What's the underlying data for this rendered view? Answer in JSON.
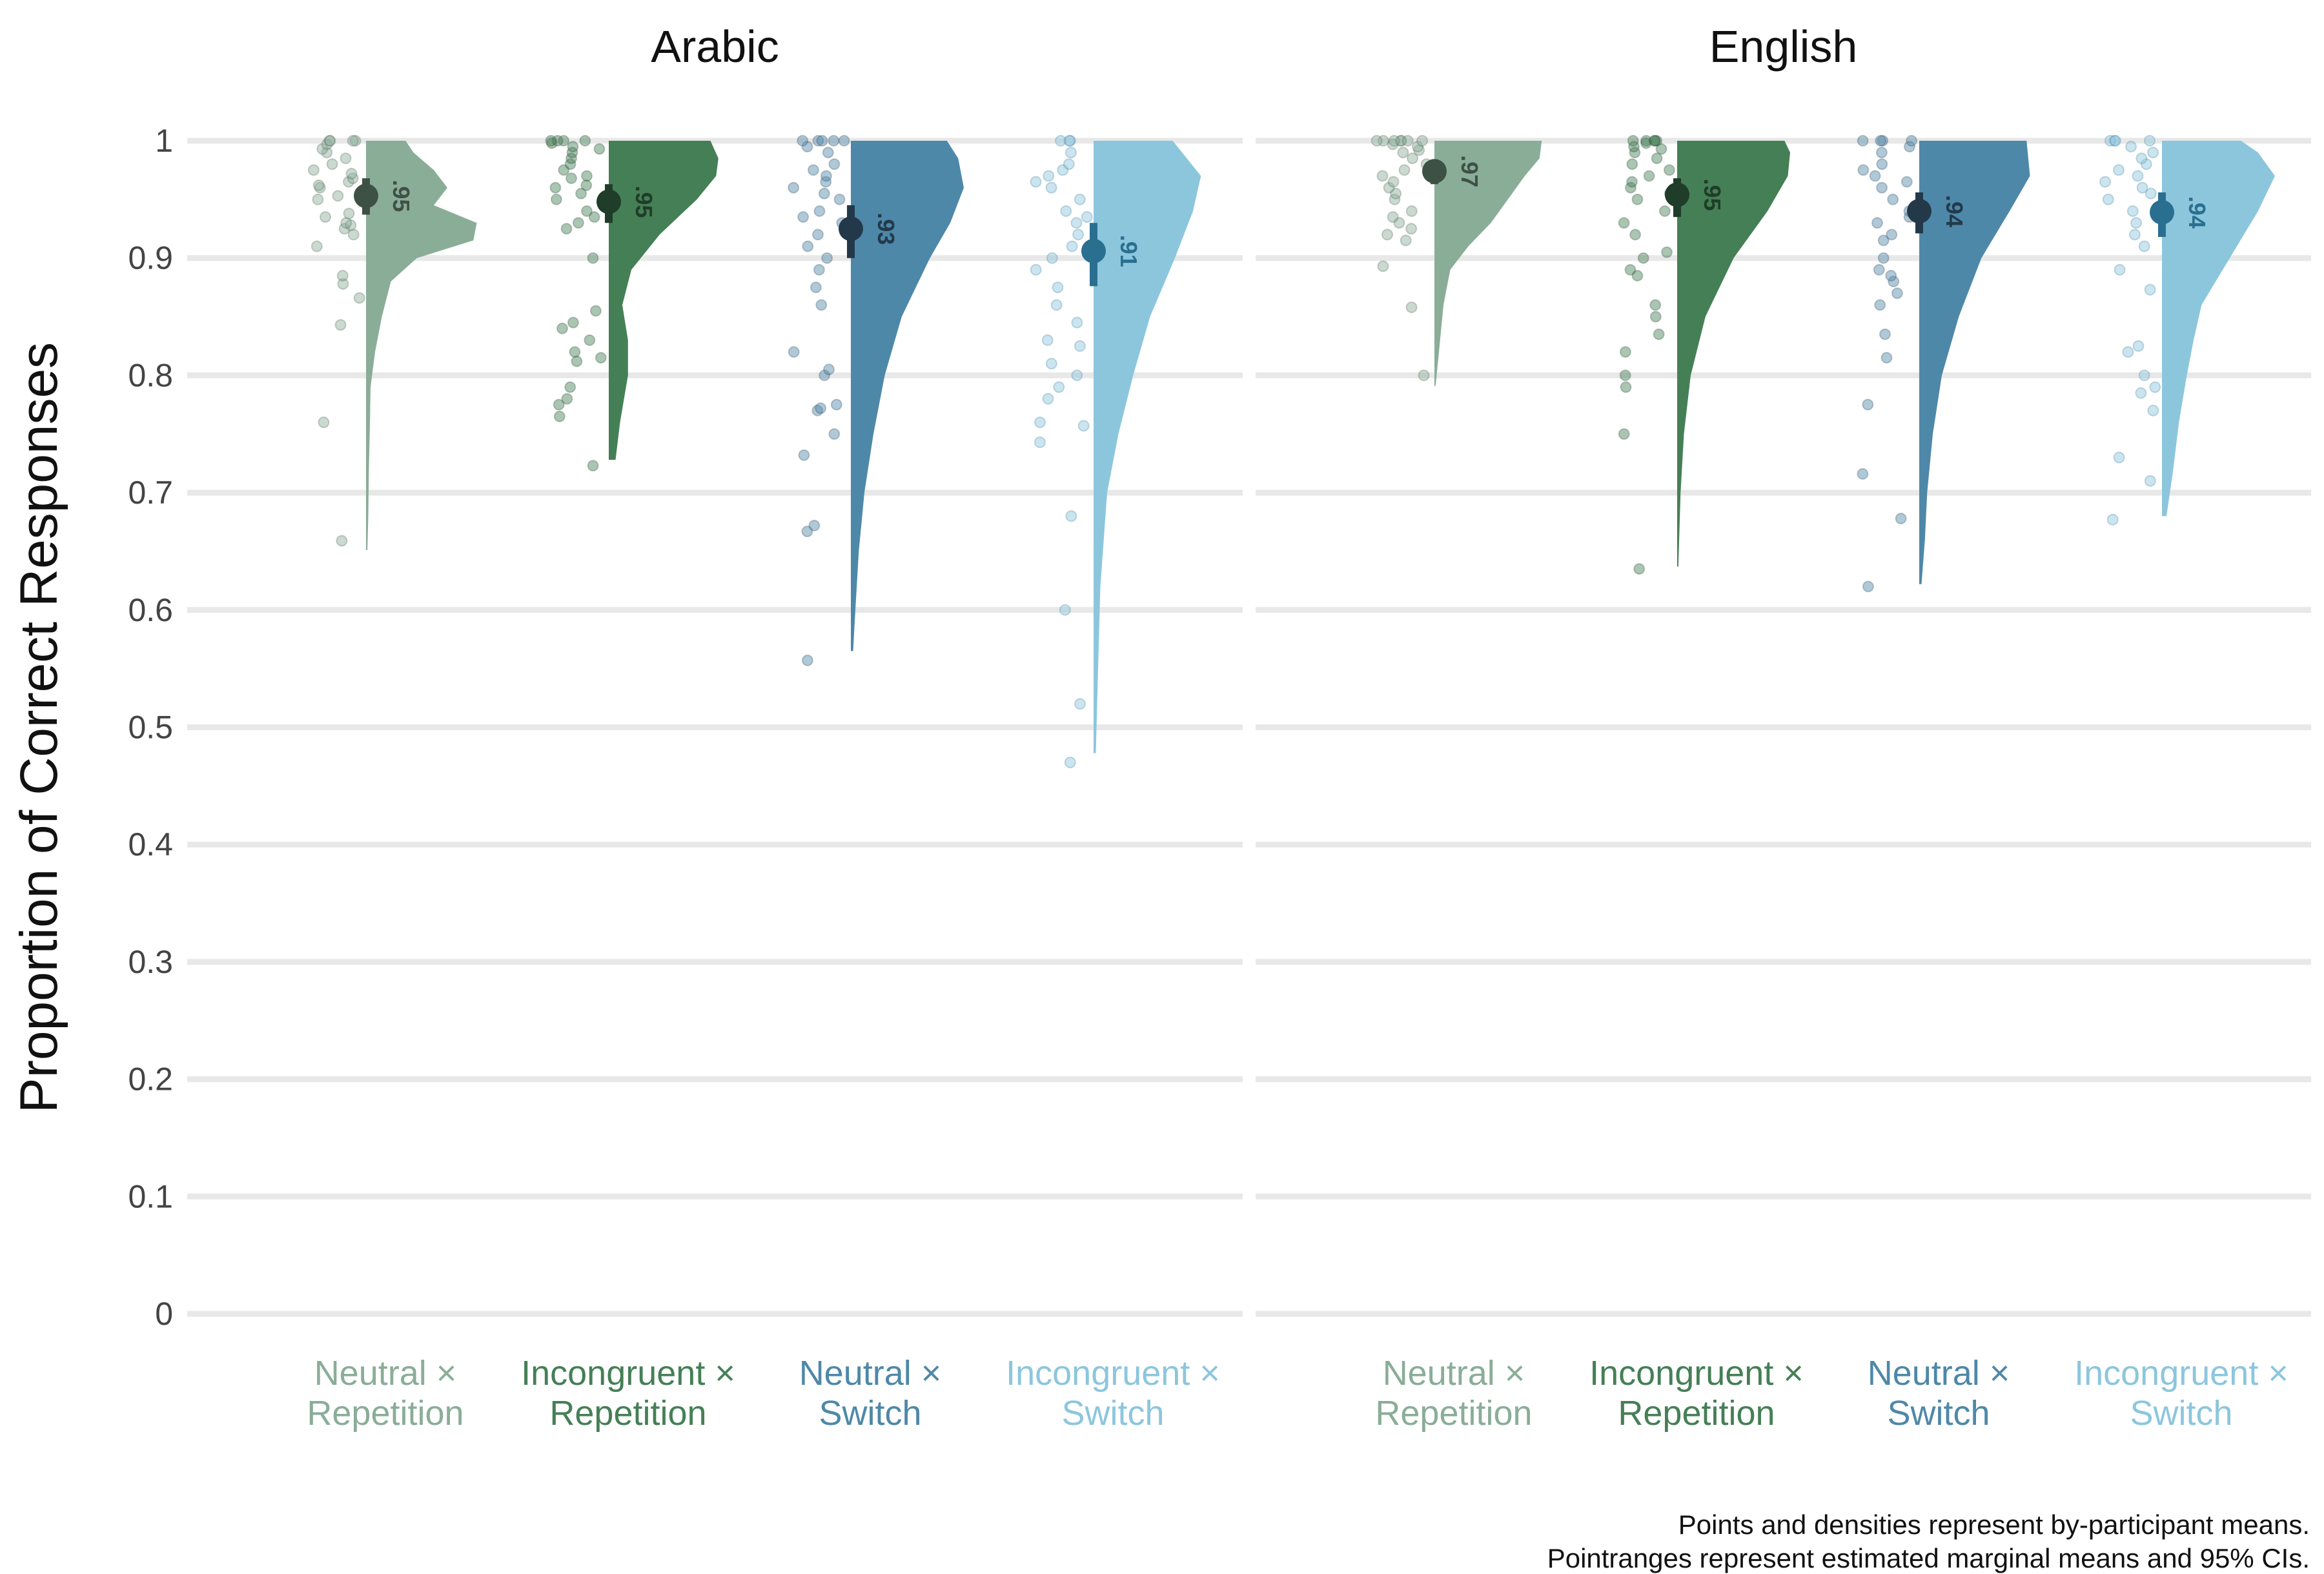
{
  "chart_data": {
    "type": "raincloud",
    "ylabel": "Proportion of Correct Responses",
    "ylim": [
      0,
      1
    ],
    "yticks": [
      0,
      0.1,
      0.2,
      0.3,
      0.4,
      0.5,
      0.6,
      0.7,
      0.8,
      0.9,
      1
    ],
    "ytick_labels": [
      "0",
      "0.1",
      "0.2",
      "0.3",
      "0.4",
      "0.5",
      "0.6",
      "0.7",
      "0.8",
      "0.9",
      "1"
    ],
    "grid": true,
    "legend": "none",
    "categories": [
      "Neutral × Repetition",
      "Incongruent × Repetition",
      "Neutral × Switch",
      "Incongruent × Switch"
    ],
    "category_lines": [
      [
        "Neutral ×",
        "Repetition"
      ],
      [
        "Incongruent ×",
        "Repetition"
      ],
      [
        "Neutral ×",
        "Switch"
      ],
      [
        "Incongruent ×",
        "Switch"
      ]
    ],
    "colors": [
      "#8aad98",
      "#457f56",
      "#4e88a8",
      "#8cc6dd"
    ],
    "dark_colors": [
      "#3e5145",
      "#1f3d29",
      "#23394a",
      "#2a6f90"
    ],
    "panels": [
      {
        "title": "Arabic",
        "groups": [
          {
            "mean": 0.953,
            "ci": [
              0.937,
              0.968
            ],
            "label": ".95",
            "min": 0.651,
            "density": [
              [
                0.651,
                0.012
              ],
              [
                0.68,
                0.02
              ],
              [
                0.72,
                0.025
              ],
              [
                0.76,
                0.035
              ],
              [
                0.79,
                0.04
              ],
              [
                0.82,
                0.08
              ],
              [
                0.85,
                0.14
              ],
              [
                0.88,
                0.22
              ],
              [
                0.9,
                0.45
              ],
              [
                0.915,
                0.95
              ],
              [
                0.93,
                0.98
              ],
              [
                0.945,
                0.6
              ],
              [
                0.96,
                0.72
              ],
              [
                0.975,
                0.6
              ],
              [
                0.99,
                0.42
              ],
              [
                1.0,
                0.35
              ]
            ],
            "points": [
              0.659,
              0.76,
              0.843,
              0.866,
              0.878,
              0.885,
              0.91,
              0.92,
              0.925,
              0.928,
              0.93,
              0.935,
              0.938,
              0.95,
              0.953,
              0.96,
              0.962,
              0.965,
              0.968,
              0.972,
              0.975,
              0.98,
              0.985,
              0.99,
              0.993,
              0.997,
              1.0,
              1.0,
              1.0,
              1.0
            ]
          },
          {
            "mean": 0.948,
            "ci": [
              0.93,
              0.963
            ],
            "label": ".95",
            "min": 0.728,
            "density": [
              [
                0.728,
                0.06
              ],
              [
                0.76,
                0.1
              ],
              [
                0.8,
                0.17
              ],
              [
                0.83,
                0.17
              ],
              [
                0.86,
                0.12
              ],
              [
                0.89,
                0.2
              ],
              [
                0.92,
                0.45
              ],
              [
                0.95,
                0.78
              ],
              [
                0.97,
                0.95
              ],
              [
                0.985,
                0.97
              ],
              [
                1.0,
                0.9
              ]
            ],
            "points": [
              0.723,
              0.765,
              0.775,
              0.78,
              0.79,
              0.812,
              0.815,
              0.82,
              0.83,
              0.84,
              0.845,
              0.855,
              0.9,
              0.925,
              0.93,
              0.935,
              0.94,
              0.95,
              0.955,
              0.96,
              0.962,
              0.968,
              0.97,
              0.975,
              0.98,
              0.985,
              0.99,
              0.993,
              0.995,
              0.998,
              1.0,
              1.0,
              1.0,
              1.0
            ]
          },
          {
            "mean": 0.925,
            "ci": [
              0.9,
              0.945
            ],
            "label": ".93",
            "min": 0.565,
            "density": [
              [
                0.565,
                0.02
              ],
              [
                0.6,
                0.04
              ],
              [
                0.65,
                0.07
              ],
              [
                0.7,
                0.12
              ],
              [
                0.75,
                0.2
              ],
              [
                0.8,
                0.3
              ],
              [
                0.85,
                0.45
              ],
              [
                0.9,
                0.7
              ],
              [
                0.93,
                0.88
              ],
              [
                0.96,
                1.0
              ],
              [
                0.985,
                0.95
              ],
              [
                1.0,
                0.85
              ]
            ],
            "points": [
              0.557,
              0.667,
              0.672,
              0.732,
              0.75,
              0.77,
              0.772,
              0.775,
              0.8,
              0.805,
              0.82,
              0.86,
              0.875,
              0.89,
              0.9,
              0.91,
              0.92,
              0.93,
              0.935,
              0.94,
              0.95,
              0.955,
              0.96,
              0.965,
              0.97,
              0.975,
              0.98,
              0.99,
              0.995,
              1.0,
              1.0,
              1.0,
              1.0,
              1.0
            ]
          },
          {
            "mean": 0.906,
            "ci": [
              0.876,
              0.93
            ],
            "label": ".91",
            "min": 0.478,
            "density": [
              [
                0.478,
                0.02
              ],
              [
                0.55,
                0.04
              ],
              [
                0.62,
                0.06
              ],
              [
                0.7,
                0.12
              ],
              [
                0.75,
                0.22
              ],
              [
                0.8,
                0.35
              ],
              [
                0.85,
                0.5
              ],
              [
                0.9,
                0.72
              ],
              [
                0.94,
                0.88
              ],
              [
                0.97,
                0.95
              ],
              [
                1.0,
                0.7
              ]
            ],
            "points": [
              0.47,
              0.52,
              0.6,
              0.68,
              0.743,
              0.757,
              0.76,
              0.78,
              0.79,
              0.8,
              0.81,
              0.825,
              0.83,
              0.845,
              0.86,
              0.875,
              0.89,
              0.9,
              0.91,
              0.92,
              0.93,
              0.935,
              0.94,
              0.95,
              0.96,
              0.965,
              0.97,
              0.975,
              0.98,
              0.99,
              1.0,
              1.0,
              1.0
            ]
          }
        ]
      },
      {
        "title": "English",
        "groups": [
          {
            "mean": 0.974,
            "ci": [
              0.963,
              0.983
            ],
            "label": ".97",
            "min": 0.791,
            "density": [
              [
                0.791,
                0.01
              ],
              [
                0.82,
                0.04
              ],
              [
                0.86,
                0.08
              ],
              [
                0.89,
                0.14
              ],
              [
                0.91,
                0.3
              ],
              [
                0.93,
                0.5
              ],
              [
                0.95,
                0.65
              ],
              [
                0.97,
                0.8
              ],
              [
                0.985,
                0.93
              ],
              [
                1.0,
                0.95
              ]
            ],
            "points": [
              0.8,
              0.858,
              0.893,
              0.915,
              0.92,
              0.925,
              0.93,
              0.935,
              0.94,
              0.95,
              0.955,
              0.96,
              0.965,
              0.97,
              0.975,
              0.98,
              0.985,
              0.99,
              0.992,
              0.995,
              0.997,
              1.0,
              1.0,
              1.0,
              1.0,
              1.0,
              1.0,
              1.0
            ]
          },
          {
            "mean": 0.954,
            "ci": [
              0.935,
              0.968
            ],
            "label": ".95",
            "min": 0.637,
            "density": [
              [
                0.637,
                0.01
              ],
              [
                0.7,
                0.03
              ],
              [
                0.75,
                0.06
              ],
              [
                0.8,
                0.12
              ],
              [
                0.85,
                0.25
              ],
              [
                0.9,
                0.5
              ],
              [
                0.94,
                0.8
              ],
              [
                0.97,
                0.98
              ],
              [
                0.99,
                1.0
              ],
              [
                1.0,
                0.95
              ]
            ],
            "points": [
              0.635,
              0.75,
              0.79,
              0.8,
              0.82,
              0.835,
              0.85,
              0.86,
              0.885,
              0.89,
              0.9,
              0.905,
              0.92,
              0.93,
              0.94,
              0.95,
              0.955,
              0.96,
              0.965,
              0.97,
              0.975,
              0.98,
              0.985,
              0.99,
              0.993,
              0.995,
              0.998,
              1.0,
              1.0,
              1.0,
              1.0,
              1.0
            ]
          },
          {
            "mean": 0.94,
            "ci": [
              0.921,
              0.956
            ],
            "label": ".94",
            "min": 0.622,
            "density": [
              [
                0.622,
                0.02
              ],
              [
                0.66,
                0.05
              ],
              [
                0.7,
                0.07
              ],
              [
                0.75,
                0.12
              ],
              [
                0.8,
                0.2
              ],
              [
                0.85,
                0.35
              ],
              [
                0.9,
                0.55
              ],
              [
                0.94,
                0.8
              ],
              [
                0.97,
                0.98
              ],
              [
                1.0,
                0.95
              ]
            ],
            "points": [
              0.62,
              0.678,
              0.716,
              0.775,
              0.815,
              0.835,
              0.86,
              0.87,
              0.88,
              0.885,
              0.89,
              0.9,
              0.915,
              0.92,
              0.93,
              0.935,
              0.94,
              0.95,
              0.96,
              0.965,
              0.97,
              0.975,
              0.98,
              0.99,
              0.995,
              1.0,
              1.0,
              1.0,
              1.0
            ]
          },
          {
            "mean": 0.939,
            "ci": [
              0.918,
              0.956
            ],
            "label": ".94",
            "min": 0.68,
            "density": [
              [
                0.68,
                0.04
              ],
              [
                0.72,
                0.1
              ],
              [
                0.76,
                0.15
              ],
              [
                0.8,
                0.22
              ],
              [
                0.83,
                0.28
              ],
              [
                0.86,
                0.35
              ],
              [
                0.9,
                0.6
              ],
              [
                0.94,
                0.85
              ],
              [
                0.97,
                1.0
              ],
              [
                0.99,
                0.85
              ],
              [
                1.0,
                0.7
              ]
            ],
            "points": [
              0.677,
              0.71,
              0.73,
              0.77,
              0.785,
              0.79,
              0.8,
              0.82,
              0.825,
              0.873,
              0.89,
              0.91,
              0.92,
              0.93,
              0.94,
              0.95,
              0.955,
              0.96,
              0.965,
              0.97,
              0.975,
              0.98,
              0.985,
              0.99,
              0.995,
              1.0,
              1.0,
              1.0,
              1.0
            ]
          }
        ]
      }
    ]
  },
  "caption": {
    "line1": "Points and densities represent by-participant means.",
    "line2": "Pointranges represent estimated marginal means and 95% CIs."
  }
}
